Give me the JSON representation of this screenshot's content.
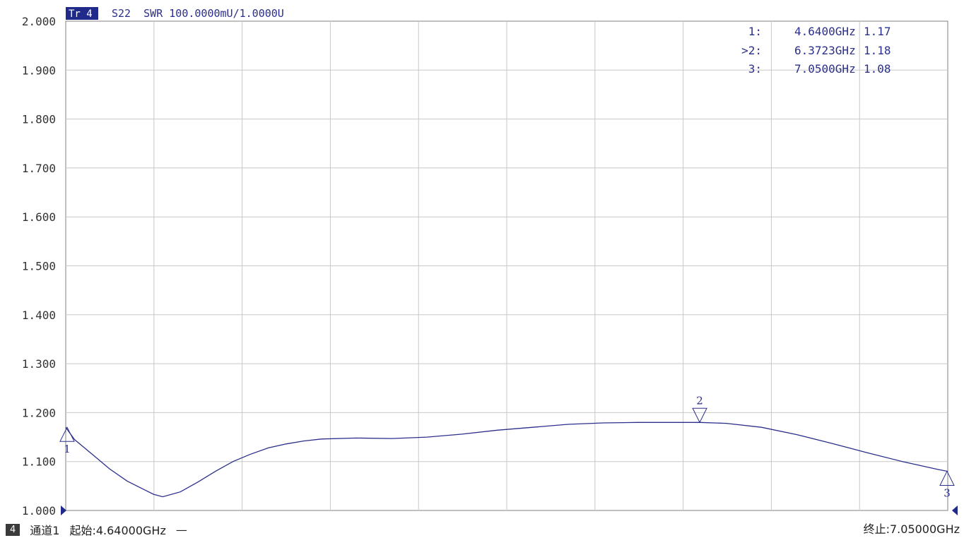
{
  "trace_header": {
    "badge": "Tr 4",
    "text": "S22  SWR 100.0000mU/1.0000U"
  },
  "markers": [
    {
      "label": "1:",
      "freq": "4.6400GHz",
      "value": "1.17",
      "num": "1"
    },
    {
      "label": ">2:",
      "freq": "6.3723GHz",
      "value": "1.18",
      "num": "2"
    },
    {
      "label": "3:",
      "freq": "7.0500GHz",
      "value": "1.08",
      "num": "3"
    }
  ],
  "footer": {
    "channel_badge": "4",
    "channel": "通道1",
    "start": "起始:4.64000GHz",
    "dash": "—",
    "stop": "终止:7.05000GHz"
  },
  "colors": {
    "trace": "#2b2f8c",
    "grid": "#c8c8c8",
    "badge_bg": "#1f2a8a"
  },
  "chart_data": {
    "type": "line",
    "ylabel": "",
    "xlabel": "",
    "xlim": [
      4.64,
      7.05
    ],
    "ylim": [
      1.0,
      2.0
    ],
    "y_ticks": [
      "2.000",
      "1.900",
      "1.800",
      "1.700",
      "1.600",
      "1.500",
      "1.400",
      "1.300",
      "1.200",
      "1.100",
      "1.000"
    ],
    "grid": true,
    "series": [
      {
        "x": [
          4.64,
          4.664,
          4.712,
          4.76,
          4.808,
          4.856,
          4.88,
          4.905,
          4.953,
          5.001,
          5.049,
          5.097,
          5.145,
          5.194,
          5.242,
          5.29,
          5.338,
          5.434,
          5.531,
          5.627,
          5.723,
          5.819,
          5.916,
          6.012,
          6.108,
          6.204,
          6.3,
          6.373,
          6.445,
          6.541,
          6.638,
          6.734,
          6.83,
          6.926,
          7.022,
          7.05
        ],
        "y": [
          1.17,
          1.145,
          1.115,
          1.085,
          1.06,
          1.042,
          1.033,
          1.028,
          1.038,
          1.058,
          1.08,
          1.1,
          1.115,
          1.128,
          1.136,
          1.142,
          1.146,
          1.148,
          1.147,
          1.15,
          1.156,
          1.164,
          1.17,
          1.176,
          1.179,
          1.18,
          1.18,
          1.18,
          1.178,
          1.17,
          1.155,
          1.137,
          1.118,
          1.1,
          1.084,
          1.08
        ]
      }
    ],
    "marker_points": [
      {
        "x": 4.64,
        "y": 1.17,
        "dir": "up"
      },
      {
        "x": 6.3723,
        "y": 1.18,
        "dir": "down"
      },
      {
        "x": 7.05,
        "y": 1.08,
        "dir": "up"
      }
    ]
  }
}
